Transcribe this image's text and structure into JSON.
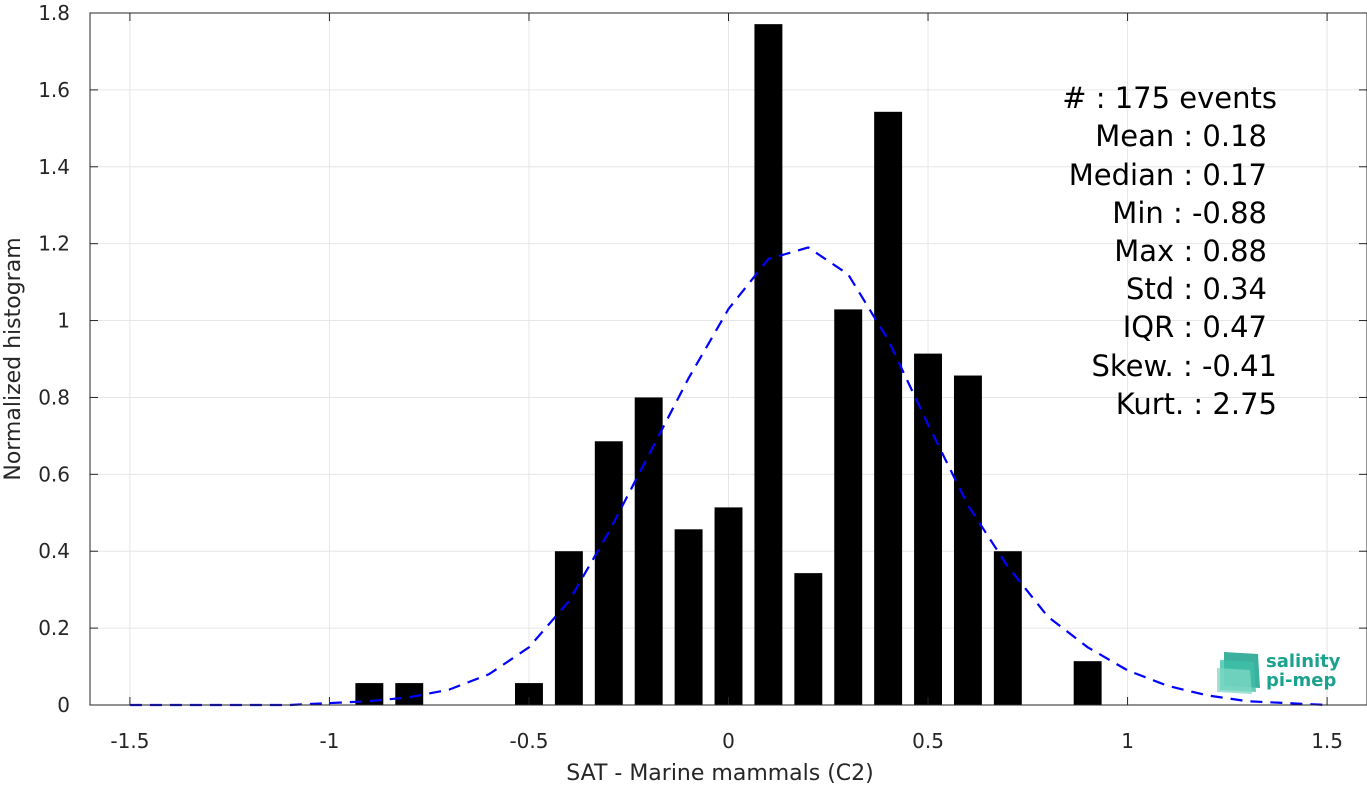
{
  "chart_data": {
    "type": "bar",
    "xlabel": "SAT - Marine mammals (C2)",
    "ylabel": "Normalized histogram",
    "xlim": [
      -1.6,
      1.6
    ],
    "ylim": [
      0,
      1.8
    ],
    "xticks": [
      -1.5,
      -1,
      -0.5,
      0,
      0.5,
      1,
      1.5
    ],
    "xtick_labels": [
      "-1.5",
      "-1",
      "-0.5",
      "0",
      "0.5",
      "1",
      "1.5"
    ],
    "yticks": [
      0,
      0.2,
      0.4,
      0.6,
      0.8,
      1,
      1.2,
      1.4,
      1.6,
      1.8
    ],
    "ytick_labels": [
      "0",
      "0.2",
      "0.4",
      "0.6",
      "0.8",
      "1",
      "1.2",
      "1.4",
      "1.6",
      "1.8"
    ],
    "grid": true,
    "bar_width": 0.07,
    "bar_color": "#000000",
    "bars": {
      "x": [
        -0.9,
        -0.8,
        -0.5,
        -0.4,
        -0.3,
        -0.2,
        -0.1,
        0.0,
        0.1,
        0.2,
        0.3,
        0.4,
        0.5,
        0.6,
        0.7,
        0.9
      ],
      "values": [
        0.057,
        0.057,
        0.057,
        0.4,
        0.686,
        0.8,
        0.457,
        0.514,
        1.771,
        0.343,
        1.029,
        1.543,
        0.914,
        0.857,
        0.4,
        0.114
      ]
    },
    "fit_curve": {
      "style": "dashed",
      "color": "#0000ff",
      "x": [
        -1.5,
        -1.4,
        -1.3,
        -1.2,
        -1.1,
        -1.0,
        -0.9,
        -0.8,
        -0.7,
        -0.6,
        -0.5,
        -0.4,
        -0.3,
        -0.2,
        -0.1,
        0.0,
        0.1,
        0.2,
        0.3,
        0.4,
        0.5,
        0.6,
        0.7,
        0.8,
        0.9,
        1.0,
        1.1,
        1.2,
        1.3,
        1.4,
        1.5
      ],
      "y": [
        0.0,
        0.0,
        0.0,
        0.0,
        0.0,
        0.005,
        0.01,
        0.02,
        0.04,
        0.08,
        0.15,
        0.27,
        0.45,
        0.65,
        0.85,
        1.03,
        1.16,
        1.19,
        1.12,
        0.95,
        0.73,
        0.52,
        0.36,
        0.23,
        0.15,
        0.09,
        0.05,
        0.025,
        0.01,
        0.005,
        0.0
      ]
    },
    "stats": {
      "events": "#  : 175 events",
      "mean": "Mean : 0.18",
      "median": "Median : 0.17",
      "min": "Min : -0.88",
      "max": "Max : 0.88",
      "std": "Std : 0.34",
      "iqr": "IQR : 0.47",
      "skew": "Skew. : -0.41",
      "kurt": "Kurt. : 2.75"
    }
  },
  "logo": {
    "line1": "salinity",
    "line2": "pi-mep",
    "color": "#1aa28e"
  }
}
